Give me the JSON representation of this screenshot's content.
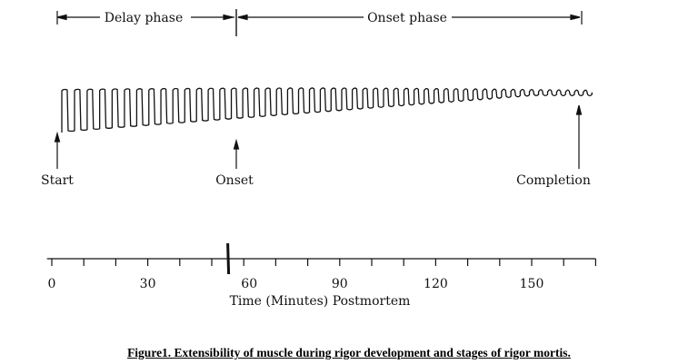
{
  "phases": {
    "delay": "Delay phase",
    "onset": "Onset phase"
  },
  "markers": {
    "start": "Start",
    "onset": "Onset",
    "completion": "Completion"
  },
  "axis": {
    "title": "Time (Minutes) Postmortem",
    "range": [
      0,
      170
    ],
    "minor_step": 10,
    "tick_labels": [
      "0",
      "30",
      "60",
      "90",
      "120",
      "150"
    ],
    "onset_time": 55
  },
  "caption": "Figure1. Extensibility of muscle during rigor development and stages of rigor mortis."
}
